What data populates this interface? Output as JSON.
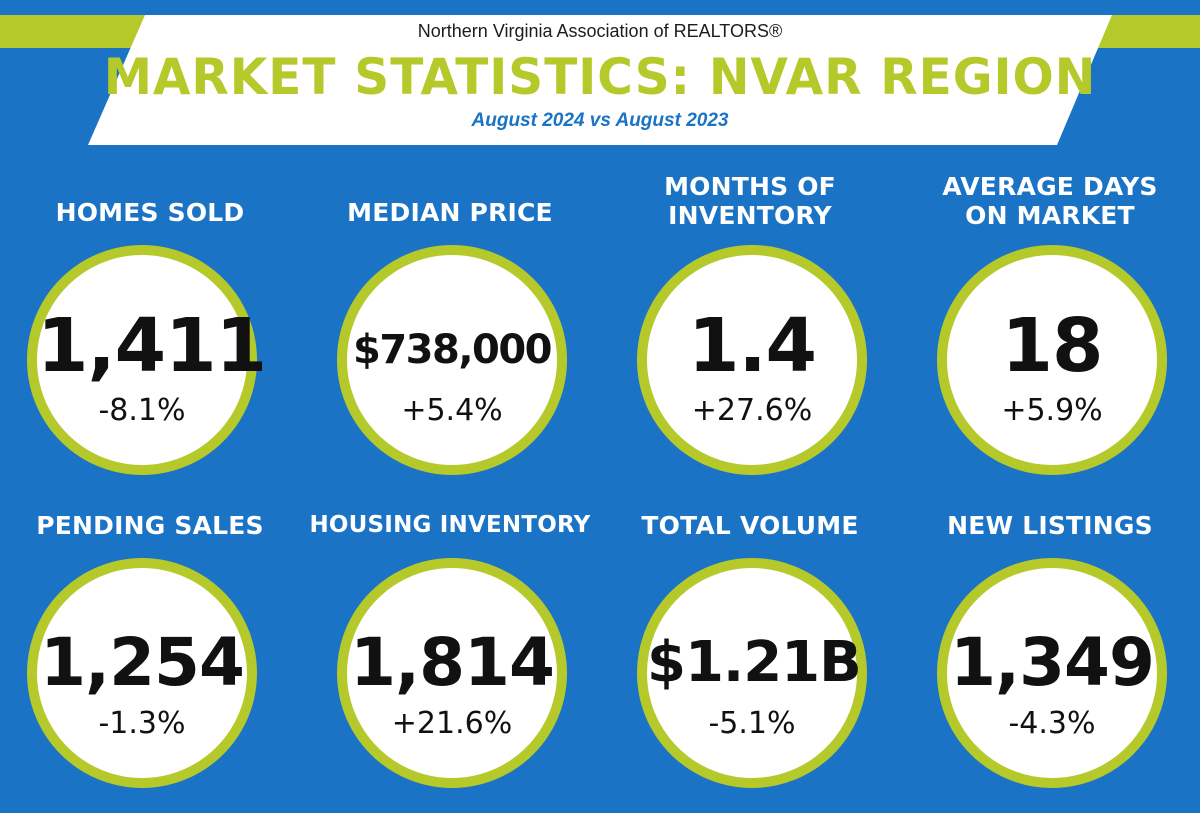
{
  "colors": {
    "background": "#1a73c4",
    "accent": "#b6c92b",
    "circle_fill": "#ffffff",
    "text_dark": "#111111",
    "text_light": "#ffffff"
  },
  "header": {
    "organization": "Northern Virginia Association of REALTORS®",
    "title": "MARKET STATISTICS: NVAR REGION",
    "period": "August 2024 vs August 2023"
  },
  "stats": [
    {
      "label_lines": [
        "HOMES SOLD"
      ],
      "value": "1,411",
      "change": "-8.1%"
    },
    {
      "label_lines": [
        "MEDIAN PRICE"
      ],
      "value": "$738,000",
      "change": "+5.4%"
    },
    {
      "label_lines": [
        "MONTHS OF",
        "INVENTORY"
      ],
      "value": "1.4",
      "change": "+27.6%"
    },
    {
      "label_lines": [
        "AVERAGE DAYS",
        "ON MARKET"
      ],
      "value": "18",
      "change": "+5.9%"
    },
    {
      "label_lines": [
        "PENDING SALES"
      ],
      "value": "1,254",
      "change": "-1.3%"
    },
    {
      "label_lines": [
        "HOUSING INVENTORY"
      ],
      "value": "1,814",
      "change": "+21.6%"
    },
    {
      "label_lines": [
        "TOTAL VOLUME"
      ],
      "value": "$1.21B",
      "change": "-5.1%"
    },
    {
      "label_lines": [
        "NEW LISTINGS"
      ],
      "value": "1,349",
      "change": "-4.3%"
    }
  ]
}
